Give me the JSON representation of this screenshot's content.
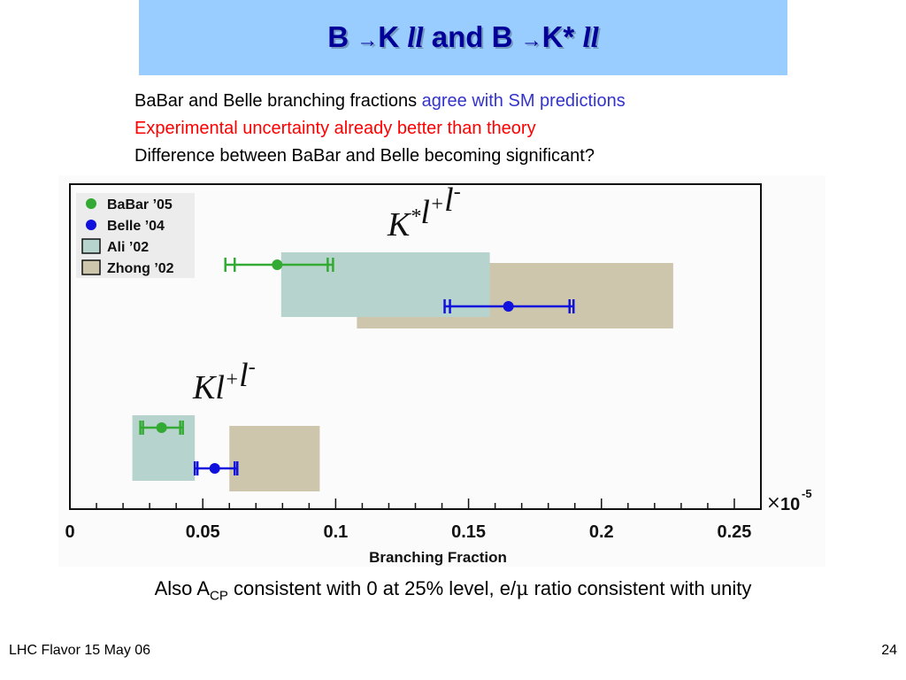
{
  "slide": {
    "title_part1": "B",
    "title_arrow1": "→",
    "title_part2": "K ",
    "title_ll1": "ll",
    "title_mid": " and B ",
    "title_arrow2": "→",
    "title_part3": "K* ",
    "title_ll2": "ll",
    "bullet1_a": "BaBar and Belle branching fractions ",
    "bullet1_b": "agree with SM predictions",
    "bullet2": "Experimental uncertainty already better than theory",
    "bullet3": "Difference between BaBar and Belle becoming significant?",
    "acp_1": "Also A",
    "acp_sub": "CP",
    "acp_2": " consistent with 0 at 25% level, e/",
    "acp_mu": "μ",
    "acp_3": " ratio consistent with unity",
    "footer_left": "LHC Flavor 15 May 06",
    "footer_right": "24"
  },
  "chart_data": {
    "type": "bar",
    "xlabel": "Branching Fraction",
    "xlim": [
      0,
      0.26
    ],
    "x_ticks": [
      0,
      0.05,
      0.1,
      0.15,
      0.2,
      0.25
    ],
    "x_tick_labels": [
      "0",
      "0.05",
      "0.1",
      "0.15",
      "0.2",
      "0.25"
    ],
    "scale_label_prefix": "×",
    "scale_label": "10",
    "scale_exponent": "-5",
    "colors": {
      "babar": "#33aa33",
      "belle": "#1111dd",
      "ali": "#b7d3cd",
      "zhong": "#cec6ac"
    },
    "legend": [
      {
        "label": "BaBar ’05",
        "kind": "dot",
        "color": "#33aa33"
      },
      {
        "label": "Belle ’04",
        "kind": "dot",
        "color": "#1111dd"
      },
      {
        "label": "Ali ’02",
        "kind": "box",
        "color": "#b7d3cd"
      },
      {
        "label": "Zhong ’02",
        "kind": "box",
        "color": "#cec6ac"
      }
    ],
    "groups": [
      {
        "label_base": "K",
        "label_sup1": "*",
        "label_mid": "l",
        "label_sup2": "+",
        "label_end": "l",
        "label_sup3": "-",
        "theory": [
          {
            "name": "Ali ’02",
            "low": 0.0795,
            "high": 0.158
          },
          {
            "name": "Zhong ’02",
            "low": 0.108,
            "high": 0.227
          }
        ],
        "measurements": [
          {
            "name": "BaBar ’05",
            "value": 0.078,
            "stat_low": 0.062,
            "stat_high": 0.097,
            "sys_low": 0.0585,
            "sys_high": 0.099
          },
          {
            "name": "Belle ’04",
            "value": 0.165,
            "stat_low": 0.143,
            "stat_high": 0.188,
            "sys_low": 0.141,
            "sys_high": 0.1895
          }
        ]
      },
      {
        "label_base": "K",
        "label_sup1": "",
        "label_mid": "l",
        "label_sup2": "+",
        "label_end": "l",
        "label_sup3": "-",
        "theory": [
          {
            "name": "Ali ’02",
            "low": 0.0235,
            "high": 0.047
          },
          {
            "name": "Zhong ’02",
            "low": 0.06,
            "high": 0.094
          }
        ],
        "measurements": [
          {
            "name": "BaBar ’05",
            "value": 0.0345,
            "stat_low": 0.0275,
            "stat_high": 0.0415,
            "sys_low": 0.0265,
            "sys_high": 0.0425
          },
          {
            "name": "Belle ’04",
            "value": 0.0545,
            "stat_low": 0.048,
            "stat_high": 0.062,
            "sys_low": 0.047,
            "sys_high": 0.063
          }
        ]
      }
    ]
  }
}
